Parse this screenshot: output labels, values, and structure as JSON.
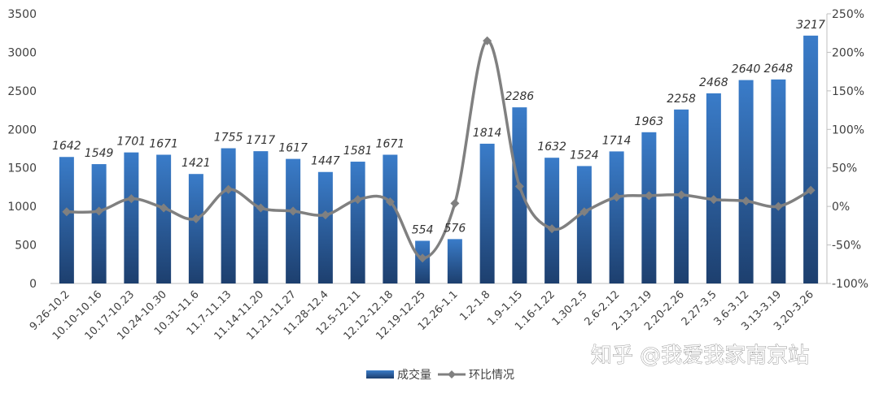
{
  "chart_data": {
    "type": "bar",
    "categories": [
      "9.26-10.2",
      "10.10-10.16",
      "10.17-10.23",
      "10.24-10.30",
      "10.31-11.6",
      "11.7-11.13",
      "11.14-11.20",
      "11.21-11.27",
      "11.28-12.4",
      "12.5-12.11",
      "12.12-12.18",
      "12.19-12.25",
      "12.26-1.1",
      "1.2-1.8",
      "1.9-1.15",
      "1.16-1.22",
      "1.30-2.5",
      "2.6-2.12",
      "2.13-2.19",
      "2.20-2.26",
      "2.27-3.5",
      "3.6-3.12",
      "3.13-3.19",
      "3.20-3.26"
    ],
    "series": [
      {
        "name": "成交量",
        "type": "bar",
        "axis": "left",
        "color": "#2e6cb5",
        "values": [
          1642,
          1549,
          1701,
          1671,
          1421,
          1755,
          1717,
          1617,
          1447,
          1581,
          1671,
          554,
          576,
          1814,
          2286,
          1632,
          1524,
          1714,
          1963,
          2258,
          2468,
          2640,
          2648,
          3217
        ]
      },
      {
        "name": "环比情况",
        "type": "line",
        "axis": "right",
        "color": "#808080",
        "values": [
          -7,
          -6,
          10,
          -2,
          -16,
          22,
          -2,
          -6,
          -11,
          9,
          6,
          -67,
          4,
          215,
          26,
          -29,
          -7,
          12,
          14,
          15,
          9,
          7,
          0,
          21
        ]
      }
    ],
    "ylim_left": [
      0,
      3500
    ],
    "yticks_left": [
      0,
      500,
      1000,
      1500,
      2000,
      2500,
      3000,
      3500
    ],
    "ylim_right": [
      -100,
      250
    ],
    "yticks_right": [
      "-100%",
      "-50%",
      "0%",
      "50%",
      "100%",
      "150%",
      "200%",
      "250%"
    ],
    "data_labels": [
      "1642",
      "1549",
      "1701",
      "1671",
      "1421",
      "1755",
      "1717",
      "1617",
      "1447",
      "1581",
      "1671",
      "554",
      "576",
      "1814",
      "2286",
      "1632",
      "1524",
      "1714",
      "1963",
      "2258",
      "2468",
      "2640",
      "2648",
      "3217"
    ],
    "title": "",
    "xlabel": "",
    "ylabel": "",
    "grid": false,
    "legend_position": "bottom-center"
  },
  "watermark": "知乎 @我爱我家南京站"
}
